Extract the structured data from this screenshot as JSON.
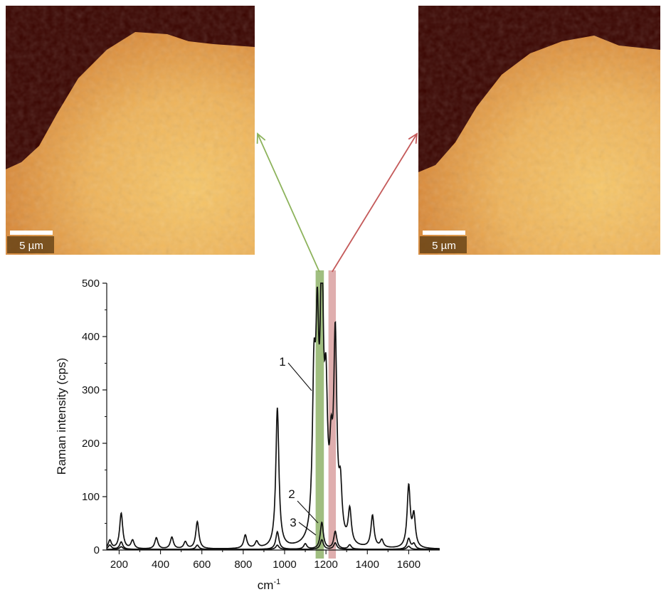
{
  "raman_maps": [
    {
      "scale_bar_label": "5 µm",
      "band_color": "#8db35c"
    },
    {
      "scale_bar_label": "5 µm",
      "band_color": "#c45a5a"
    }
  ],
  "colors": {
    "map_dark": "#3a0500",
    "map_bright": "#f7d060",
    "green_band": "#8fb36a",
    "red_band": "#d9a0a0",
    "curve": "#111111"
  },
  "chart_data": {
    "type": "line",
    "xlabel": "cm",
    "xlabel_superscript": "-1",
    "ylabel": "Raman intensity (cps)",
    "xlim": [
      140,
      1750
    ],
    "ylim": [
      0,
      500
    ],
    "xticks": [
      200,
      400,
      600,
      800,
      1000,
      1200,
      1400,
      1600
    ],
    "yticks": [
      0,
      100,
      200,
      300,
      400,
      500
    ],
    "highlight_bands": [
      {
        "x_from": 1150,
        "x_to": 1190,
        "color": "green"
      },
      {
        "x_from": 1212,
        "x_to": 1248,
        "color": "red"
      }
    ],
    "series": [
      {
        "name": "1",
        "peaks": [
          {
            "x": 155,
            "y": 16
          },
          {
            "x": 210,
            "y": 67
          },
          {
            "x": 265,
            "y": 16
          },
          {
            "x": 380,
            "y": 21
          },
          {
            "x": 455,
            "y": 22
          },
          {
            "x": 520,
            "y": 13
          },
          {
            "x": 578,
            "y": 51
          },
          {
            "x": 810,
            "y": 25
          },
          {
            "x": 865,
            "y": 12
          },
          {
            "x": 965,
            "y": 262
          },
          {
            "x": 1142,
            "y": 270
          },
          {
            "x": 1158,
            "y": 340
          },
          {
            "x": 1180,
            "y": 490
          },
          {
            "x": 1200,
            "y": 230
          },
          {
            "x": 1225,
            "y": 130
          },
          {
            "x": 1245,
            "y": 370
          },
          {
            "x": 1270,
            "y": 90
          },
          {
            "x": 1315,
            "y": 64
          },
          {
            "x": 1425,
            "y": 60
          },
          {
            "x": 1470,
            "y": 14
          },
          {
            "x": 1600,
            "y": 115
          },
          {
            "x": 1625,
            "y": 58
          }
        ]
      },
      {
        "name": "2",
        "peaks": [
          {
            "x": 155,
            "y": 8
          },
          {
            "x": 210,
            "y": 14
          },
          {
            "x": 578,
            "y": 8
          },
          {
            "x": 965,
            "y": 33
          },
          {
            "x": 1100,
            "y": 10
          },
          {
            "x": 1180,
            "y": 50
          },
          {
            "x": 1245,
            "y": 33
          },
          {
            "x": 1315,
            "y": 8
          },
          {
            "x": 1600,
            "y": 20
          },
          {
            "x": 1625,
            "y": 10
          }
        ]
      },
      {
        "name": "3",
        "peaks": [
          {
            "x": 210,
            "y": 5
          },
          {
            "x": 965,
            "y": 8
          },
          {
            "x": 1180,
            "y": 18
          },
          {
            "x": 1245,
            "y": 12
          },
          {
            "x": 1600,
            "y": 6
          }
        ]
      }
    ],
    "annotations": [
      {
        "text": "1",
        "series": "1"
      },
      {
        "text": "2",
        "series": "2"
      },
      {
        "text": "3",
        "series": "3"
      }
    ]
  }
}
